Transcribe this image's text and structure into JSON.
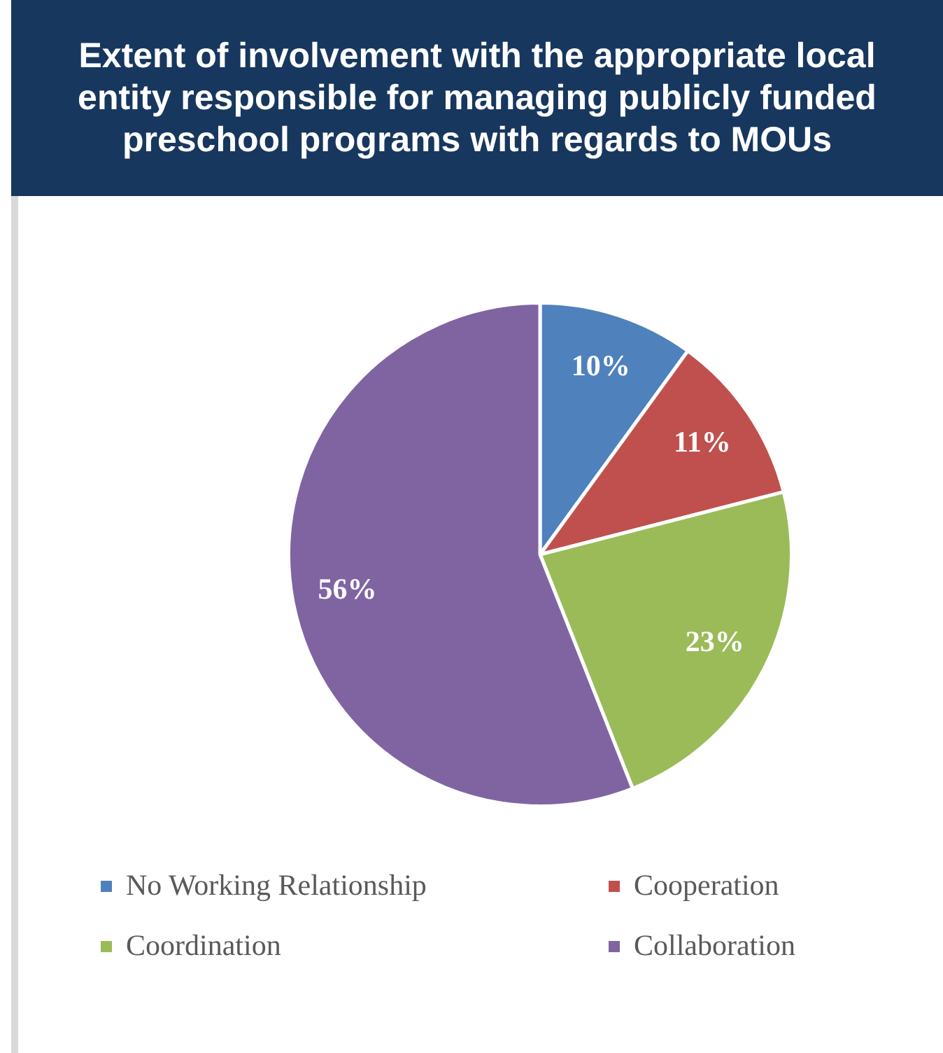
{
  "chart_data": {
    "type": "pie",
    "title": "Extent of involvement with the appropriate local entity responsible for managing publicly funded preschool programs with regards to MOUs",
    "categories": [
      "No Working Relationship",
      "Cooperation",
      "Coordination",
      "Collaboration"
    ],
    "values": [
      10,
      11,
      23,
      56
    ],
    "value_labels": [
      "10%",
      "11%",
      "23%",
      "56%"
    ],
    "colors": [
      "#4f81bd",
      "#c0504d",
      "#9bbb59",
      "#8064a2"
    ],
    "legend": "bottom"
  }
}
